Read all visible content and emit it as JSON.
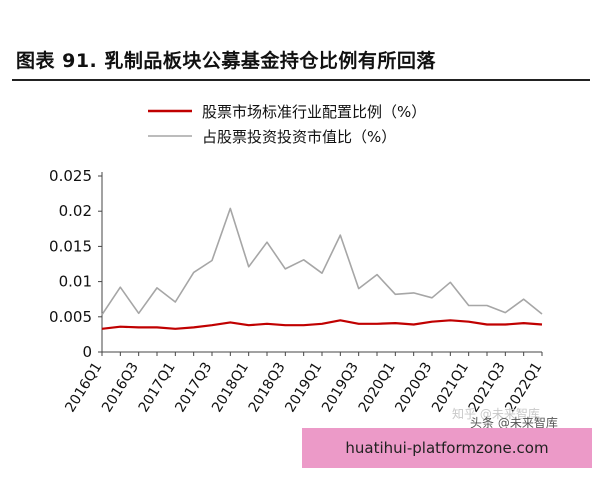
{
  "title": "图表 91. 乳制品板块公募基金持仓比例有所回落",
  "watermarks": [
    "知乎 @未来智库",
    "头条 @未来智库"
  ],
  "url_banner": "huatihui-platformzone.com",
  "colors": {
    "series_standard": "#c00000",
    "series_fund": "#a6a6a6",
    "banner": "#ec9ac8"
  },
  "chart_data": {
    "type": "line",
    "categories": [
      "2016Q1",
      "2016Q2",
      "2016Q3",
      "2016Q4",
      "2017Q1",
      "2017Q2",
      "2017Q3",
      "2017Q4",
      "2018Q1",
      "2018Q2",
      "2018Q3",
      "2018Q4",
      "2019Q1",
      "2019Q2",
      "2019Q3",
      "2019Q4",
      "2020Q1",
      "2020Q2",
      "2020Q3",
      "2020Q4",
      "2021Q1",
      "2021Q2",
      "2021Q3",
      "2021Q4",
      "2022Q1"
    ],
    "tick_labels": [
      "2016Q1",
      "2016Q3",
      "2017Q1",
      "2017Q3",
      "2018Q1",
      "2018Q3",
      "2019Q1",
      "2019Q3",
      "2020Q1",
      "2020Q3",
      "2021Q1",
      "2021Q3",
      "2022Q1"
    ],
    "ylim": [
      0,
      0.025
    ],
    "yticks": [
      "0",
      "0.005",
      "0.01",
      "0.015",
      "0.02",
      "0.025"
    ],
    "ytick_values": [
      0,
      0.005,
      0.01,
      0.015,
      0.02,
      0.025
    ],
    "legend_position": "top",
    "grid": false,
    "series": [
      {
        "name": "股票市场标准行业配置比例（%）",
        "color_key": "series_standard",
        "values": [
          0.0033,
          0.0036,
          0.0035,
          0.0035,
          0.0033,
          0.0035,
          0.0038,
          0.0042,
          0.0038,
          0.004,
          0.0038,
          0.0038,
          0.004,
          0.0045,
          0.004,
          0.004,
          0.0041,
          0.0039,
          0.0043,
          0.0045,
          0.0043,
          0.0039,
          0.0039,
          0.0041,
          0.0039
        ]
      },
      {
        "name": "占股票投资投资市值比（%）",
        "color_key": "series_fund",
        "values": [
          0.0053,
          0.0092,
          0.0055,
          0.0091,
          0.0071,
          0.0113,
          0.013,
          0.0204,
          0.0121,
          0.0156,
          0.0118,
          0.0131,
          0.0112,
          0.0166,
          0.009,
          0.011,
          0.0082,
          0.0084,
          0.0077,
          0.0099,
          0.0066,
          0.0066,
          0.0056,
          0.0075,
          0.0054
        ]
      }
    ]
  }
}
